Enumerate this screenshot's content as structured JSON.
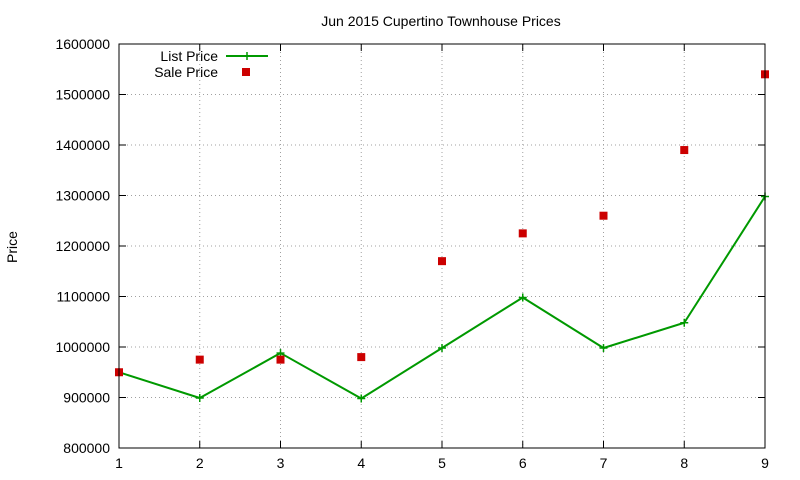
{
  "chart_data": {
    "type": "line",
    "title": "Jun 2015 Cupertino Townhouse Prices",
    "xlabel": "",
    "ylabel": "Price",
    "x": [
      1,
      2,
      3,
      4,
      5,
      6,
      7,
      8,
      9
    ],
    "xlim": [
      1,
      9
    ],
    "ylim": [
      800000,
      1600000
    ],
    "xticks": [
      1,
      2,
      3,
      4,
      5,
      6,
      7,
      8,
      9
    ],
    "yticks": [
      800000,
      900000,
      1000000,
      1100000,
      1200000,
      1300000,
      1400000,
      1500000,
      1600000
    ],
    "grid": true,
    "legend_position": "top-left",
    "series": [
      {
        "name": "List Price",
        "style": "line-with-plus-markers",
        "color": "#009900",
        "values": [
          950000,
          899000,
          988000,
          898000,
          998000,
          1098000,
          998000,
          1048000,
          1298000
        ]
      },
      {
        "name": "Sale Price",
        "style": "square-markers",
        "color": "#cc0000",
        "values": [
          950000,
          975000,
          975000,
          980000,
          1170000,
          1225000,
          1260000,
          1390000,
          1540000
        ]
      }
    ]
  }
}
